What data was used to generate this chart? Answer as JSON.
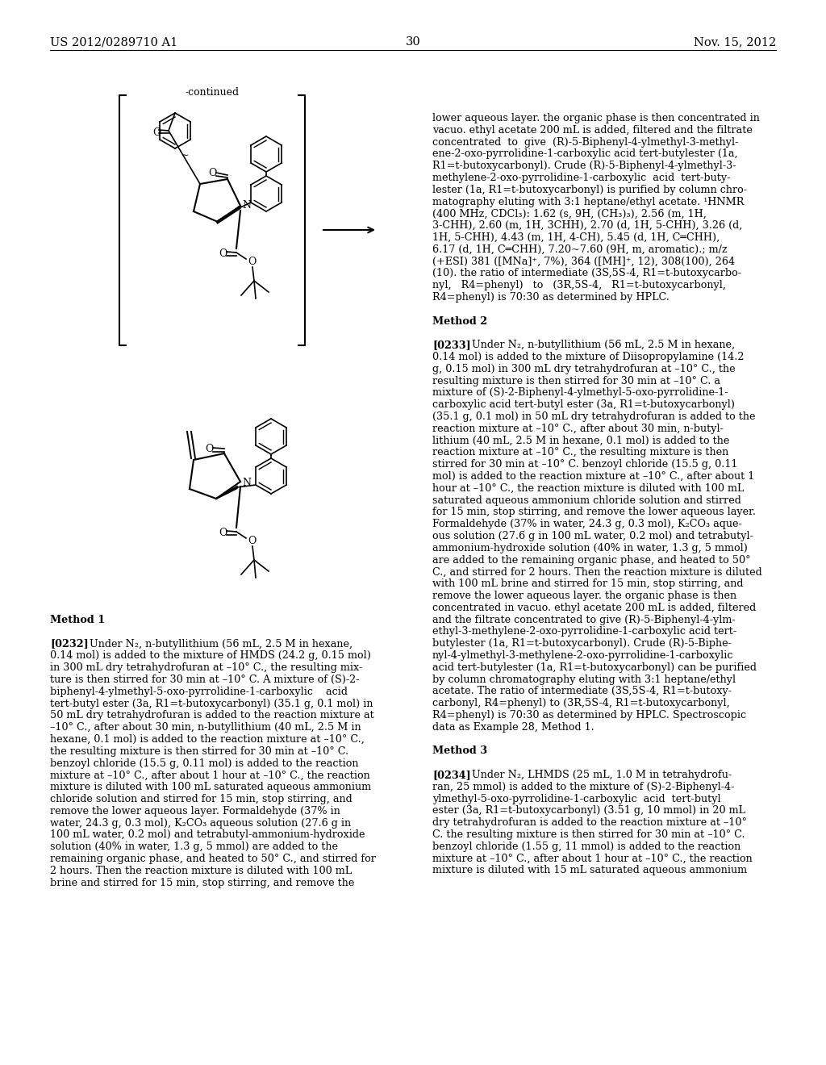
{
  "background_color": "#ffffff",
  "page_header_left": "US 2012/0289710 A1",
  "page_header_right": "Nov. 15, 2012",
  "page_number": "30",
  "continued_label": "-continued",
  "right_col_lines": [
    "lower aqueous layer. the organic phase is then concentrated in",
    "vacuo. ethyl acetate 200 mL is added, filtered and the filtrate",
    "concentrated  to  give  (R)-5-Biphenyl-4-ylmethyl-3-methyl-",
    "ene-2-oxo-pyrrolidine-1-carboxylic acid tert-butylester (1a,",
    "R1=t-butoxycarbonyl). Crude (R)-5-Biphenyl-4-ylmethyl-3-",
    "methylene-2-oxo-pyrrolidine-1-carboxylic  acid  tert-buty-",
    "lester (1a, R1=t-butoxycarbonyl) is purified by column chro-",
    "matography eluting with 3:1 heptane/ethyl acetate. ¹HNMR",
    "(400 MHz, CDCl₃): 1.62 (s, 9H, (CH₃)₃), 2.56 (m, 1H,",
    "3-CHH), 2.60 (m, 1H, 3CHH), 2.70 (d, 1H, 5-CHH), 3.26 (d,",
    "1H, 5-CHH), 4.43 (m, 1H, 4-CH), 5.45 (d, 1H, C═CHH),",
    "6.17 (d, 1H, C═CHH), 7.20~7.60 (9H, m, aromatic).; m/z",
    "(+ESI) 381 ([MNa]⁺, 7%), 364 ([MH]⁺, 12), 308(100), 264",
    "(10). the ratio of intermediate (3S,5S-4, R1=t-butoxycarbo-",
    "nyl,   R4=phenyl)   to   (3R,5S-4,   R1=t-butoxycarbonyl,",
    "R4=phenyl) is 70:30 as determined by HPLC.",
    "",
    "Method 2",
    "",
    "[0233]    Under N₂, n-butyllithium (56 mL, 2.5 M in hexane,",
    "0.14 mol) is added to the mixture of Diisopropylamine (14.2",
    "g, 0.15 mol) in 300 mL dry tetrahydrofuran at –10° C., the",
    "resulting mixture is then stirred for 30 min at –10° C. a",
    "mixture of (S)-2-Biphenyl-4-ylmethyl-5-oxo-pyrrolidine-1-",
    "carboxylic acid tert-butyl ester (3a, R1=t-butoxycarbonyl)",
    "(35.1 g, 0.1 mol) in 50 mL dry tetrahydrofuran is added to the",
    "reaction mixture at –10° C., after about 30 min, n-butyl-",
    "lithium (40 mL, 2.5 M in hexane, 0.1 mol) is added to the",
    "reaction mixture at –10° C., the resulting mixture is then",
    "stirred for 30 min at –10° C. benzoyl chloride (15.5 g, 0.11",
    "mol) is added to the reaction mixture at –10° C., after about 1",
    "hour at –10° C., the reaction mixture is diluted with 100 mL",
    "saturated aqueous ammonium chloride solution and stirred",
    "for 15 min, stop stirring, and remove the lower aqueous layer.",
    "Formaldehyde (37% in water, 24.3 g, 0.3 mol), K₂CO₃ aque-",
    "ous solution (27.6 g in 100 mL water, 0.2 mol) and tetrabutyl-",
    "ammonium-hydroxide solution (40% in water, 1.3 g, 5 mmol)",
    "are added to the remaining organic phase, and heated to 50°",
    "C., and stirred for 2 hours. Then the reaction mixture is diluted",
    "with 100 mL brine and stirred for 15 min, stop stirring, and",
    "remove the lower aqueous layer. the organic phase is then",
    "concentrated in vacuo. ethyl acetate 200 mL is added, filtered",
    "and the filtrate concentrated to give (R)-5-Biphenyl-4-ylm-",
    "ethyl-3-methylene-2-oxo-pyrrolidine-1-carboxylic acid tert-",
    "butylester (1a, R1=t-butoxycarbonyl). Crude (R)-5-Biphe-",
    "nyl-4-ylmethyl-3-methylene-2-oxo-pyrrolidine-1-carboxylic",
    "acid tert-butylester (1a, R1=t-butoxycarbonyl) can be purified",
    "by column chromatography eluting with 3:1 heptane/ethyl",
    "acetate. The ratio of intermediate (3S,5S-4, R1=t-butoxy-",
    "carbonyl, R4=phenyl) to (3R,5S-4, R1=t-butoxycarbonyl,",
    "R4=phenyl) is 70:30 as determined by HPLC. Spectroscopic",
    "data as Example 28, Method 1.",
    "",
    "Method 3",
    "",
    "[0234]    Under N₂, LHMDS (25 mL, 1.0 M in tetrahydrofu-",
    "ran, 25 mmol) is added to the mixture of (S)-2-Biphenyl-4-",
    "ylmethyl-5-oxo-pyrrolidine-1-carboxylic  acid  tert-butyl",
    "ester (3a, R1=t-butoxycarbonyl) (3.51 g, 10 mmol) in 20 mL",
    "dry tetrahydrofuran is added to the reaction mixture at –10°",
    "C. the resulting mixture is then stirred for 30 min at –10° C.",
    "benzoyl chloride (1.55 g, 11 mmol) is added to the reaction",
    "mixture at –10° C., after about 1 hour at –10° C., the reaction",
    "mixture is diluted with 15 mL saturated aqueous ammonium"
  ],
  "left_col_lines": [
    "Method 1",
    "",
    "[0232]    Under N₂, n-butyllithium (56 mL, 2.5 M in hexane,",
    "0.14 mol) is added to the mixture of HMDS (24.2 g, 0.15 mol)",
    "in 300 mL dry tetrahydrofuran at –10° C., the resulting mix-",
    "ture is then stirred for 30 min at –10° C. A mixture of (S)-2-",
    "biphenyl-4-ylmethyl-5-oxo-pyrrolidine-1-carboxylic    acid",
    "tert-butyl ester (3a, R1=t-butoxycarbonyl) (35.1 g, 0.1 mol) in",
    "50 mL dry tetrahydrofuran is added to the reaction mixture at",
    "–10° C., after about 30 min, n-butyllithium (40 mL, 2.5 M in",
    "hexane, 0.1 mol) is added to the reaction mixture at –10° C.,",
    "the resulting mixture is then stirred for 30 min at –10° C.",
    "benzoyl chloride (15.5 g, 0.11 mol) is added to the reaction",
    "mixture at –10° C., after about 1 hour at –10° C., the reaction",
    "mixture is diluted with 100 mL saturated aqueous ammonium",
    "chloride solution and stirred for 15 min, stop stirring, and",
    "remove the lower aqueous layer. Formaldehyde (37% in",
    "water, 24.3 g, 0.3 mol), K₂CO₃ aqueous solution (27.6 g in",
    "100 mL water, 0.2 mol) and tetrabutyl-ammonium-hydroxide",
    "solution (40% in water, 1.3 g, 5 mmol) are added to the",
    "remaining organic phase, and heated to 50° C., and stirred for",
    "2 hours. Then the reaction mixture is diluted with 100 mL",
    "brine and stirred for 15 min, stop stirring, and remove the"
  ]
}
